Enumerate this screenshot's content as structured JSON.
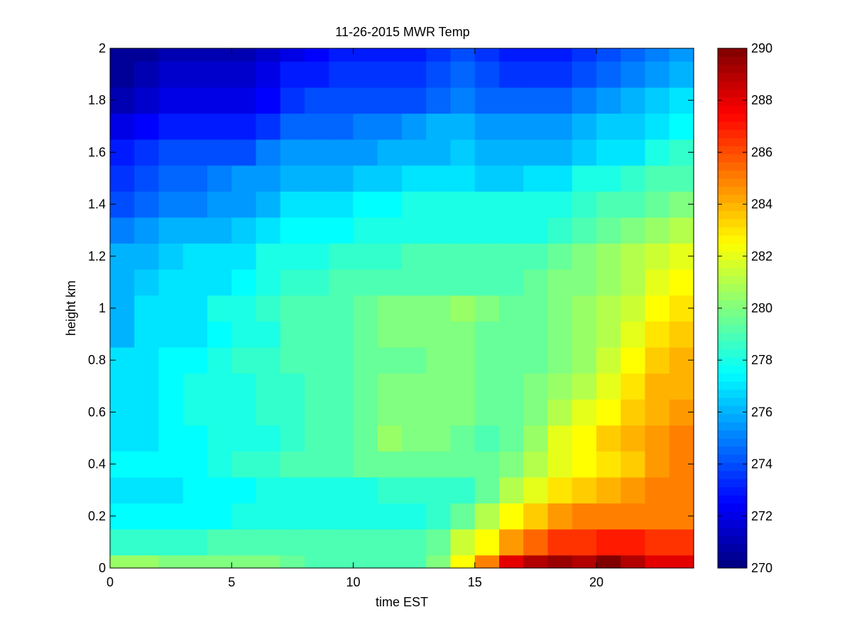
{
  "chart_data": {
    "type": "heatmap",
    "title": "11-26-2015 MWR Temp",
    "xlabel": "time EST",
    "ylabel": "height km",
    "xlim": [
      0,
      24
    ],
    "ylim": [
      0,
      2
    ],
    "x_ticks": [
      0,
      5,
      10,
      15,
      20
    ],
    "y_ticks": [
      0,
      0.2,
      0.4,
      0.6,
      0.8,
      1,
      1.2,
      1.4,
      1.6,
      1.8,
      2
    ],
    "grid": false,
    "colormap": "jet",
    "colorbar": {
      "min": 270,
      "max": 290,
      "ticks": [
        270,
        272,
        274,
        276,
        278,
        280,
        282,
        284,
        286,
        288,
        290
      ]
    },
    "x_centers": [
      0.5,
      1.5,
      2.5,
      3.5,
      4.5,
      5.5,
      6.5,
      7.5,
      8.5,
      9.5,
      10.5,
      11.5,
      12.5,
      13.5,
      14.5,
      15.5,
      16.5,
      17.5,
      18.5,
      19.5,
      20.5,
      21.5,
      22.5,
      23.5
    ],
    "y_edges": [
      0,
      0.05,
      0.15,
      0.25,
      0.35,
      0.45,
      0.55,
      0.65,
      0.75,
      0.85,
      0.95,
      1.05,
      1.15,
      1.25,
      1.35,
      1.45,
      1.55,
      1.65,
      1.75,
      1.85,
      1.95,
      2
    ],
    "z_rows_bottom_to_top": [
      [
        280.5,
        280.5,
        280,
        280,
        280,
        280,
        280,
        279.5,
        279,
        279,
        279,
        279,
        279,
        280,
        282.5,
        285,
        288,
        289,
        289.5,
        289,
        290,
        289,
        288,
        288
      ],
      [
        278.5,
        278.5,
        278.5,
        278.5,
        279,
        279,
        279,
        279,
        279,
        279,
        279,
        279,
        279,
        279.5,
        281.5,
        282.5,
        284.5,
        285.5,
        286.5,
        286.5,
        287,
        287,
        286.5,
        286.5
      ],
      [
        277.5,
        277.5,
        277.5,
        277.5,
        277.5,
        278,
        278,
        278,
        278,
        278,
        278,
        278,
        278,
        278.5,
        279.5,
        281,
        282.5,
        283.5,
        284.5,
        285,
        285,
        285,
        285,
        285
      ],
      [
        277,
        277,
        277,
        277.5,
        277.5,
        277.5,
        278,
        278,
        278,
        278,
        278,
        278.5,
        278.5,
        278.5,
        278.5,
        279.5,
        281,
        282,
        283,
        283.5,
        284,
        284.5,
        285,
        285
      ],
      [
        277.5,
        277.5,
        277.5,
        277.5,
        278,
        278.5,
        278.5,
        279,
        279,
        279,
        279.5,
        279.5,
        279.5,
        279.5,
        279.5,
        279.5,
        280,
        281,
        282,
        282.5,
        283,
        283.5,
        284.5,
        285
      ],
      [
        277,
        277,
        277.5,
        277.5,
        278,
        278,
        278,
        278.5,
        279,
        279,
        279.5,
        280.5,
        280,
        280,
        279.5,
        279,
        279.5,
        280.5,
        282,
        282.5,
        283.5,
        284,
        284.5,
        285
      ],
      [
        277,
        277,
        277.5,
        278,
        278,
        278,
        278.5,
        278.5,
        279,
        279,
        279.5,
        280,
        280,
        280,
        280,
        279.5,
        279.5,
        280,
        281,
        282,
        282.5,
        283.5,
        284,
        284.5
      ],
      [
        277,
        277,
        277.5,
        278,
        278,
        278,
        278.5,
        278.5,
        279,
        279,
        279.5,
        280,
        280,
        280,
        280,
        279.5,
        279.5,
        280,
        280.5,
        281,
        282,
        283,
        284,
        284
      ],
      [
        277,
        277,
        277.5,
        277.5,
        278,
        278.5,
        278.5,
        279,
        279,
        279,
        279.5,
        279.5,
        279.5,
        280,
        280,
        279.5,
        279.5,
        279.5,
        280,
        280.5,
        281.5,
        282.5,
        283.5,
        284
      ],
      [
        276,
        277,
        277,
        277,
        277.5,
        278,
        278,
        279,
        279,
        279,
        279.5,
        280,
        280,
        280,
        280,
        279.5,
        279.5,
        279.5,
        280,
        280.5,
        281,
        282,
        283,
        283.5
      ],
      [
        276,
        277,
        277,
        277,
        278,
        278,
        278.5,
        279,
        279,
        279,
        279.5,
        280,
        280,
        280,
        280.5,
        280,
        279.5,
        279.5,
        280,
        280.5,
        281,
        281.5,
        282.5,
        283
      ],
      [
        276,
        276.5,
        277,
        277,
        277,
        277.5,
        278,
        278.5,
        278.5,
        279,
        279,
        279,
        279,
        279,
        279,
        279,
        279,
        279.5,
        280,
        280,
        280.5,
        281,
        282,
        282.5
      ],
      [
        276,
        276,
        276.5,
        277,
        277,
        277,
        278,
        278,
        278,
        278.5,
        278.5,
        278.5,
        279,
        279,
        279,
        279,
        279,
        279,
        279.5,
        280,
        280.5,
        281,
        281.5,
        282
      ],
      [
        275,
        275.5,
        276,
        276,
        276,
        276.5,
        277,
        277.5,
        277.5,
        277.5,
        278,
        278,
        278,
        278,
        278,
        278,
        278,
        278,
        278.5,
        279,
        279.5,
        280,
        280.5,
        281
      ],
      [
        274,
        274.5,
        275,
        275,
        275.5,
        275.5,
        276,
        277,
        277,
        277,
        277.5,
        277.5,
        278,
        278,
        278,
        278,
        278,
        278,
        278,
        278.5,
        279,
        279,
        279.5,
        280
      ],
      [
        273.5,
        274,
        274.5,
        274.5,
        275,
        275.5,
        275.5,
        276,
        276,
        276,
        276.5,
        276.5,
        277,
        277,
        277,
        276.5,
        276.5,
        277,
        277,
        278,
        278,
        278.5,
        279,
        279
      ],
      [
        273,
        273.5,
        274,
        274,
        274,
        274,
        275,
        275.5,
        275.5,
        275.5,
        275.5,
        276,
        276,
        276,
        276.5,
        276,
        276,
        276,
        276,
        276.5,
        277,
        277,
        278,
        278.5
      ],
      [
        272,
        272.5,
        273,
        273,
        273,
        273,
        273.5,
        274.5,
        274.5,
        274.5,
        275,
        275,
        275.5,
        276,
        276,
        275.5,
        275.5,
        275.5,
        275.5,
        276,
        276.5,
        276.5,
        277,
        277.5
      ],
      [
        271,
        271.5,
        272,
        272,
        272,
        272,
        272.5,
        273.5,
        274,
        274,
        274,
        274,
        274,
        274.5,
        275,
        274.5,
        274.5,
        274.5,
        274.5,
        275,
        275.5,
        276,
        276.5,
        277
      ],
      [
        270.5,
        271,
        271.5,
        271.5,
        271.5,
        271.5,
        272,
        273,
        273,
        273.5,
        273.5,
        273.5,
        273.5,
        274,
        274.5,
        274,
        273.5,
        273.5,
        273.5,
        274,
        274.5,
        275,
        275.5,
        276
      ],
      [
        270.5,
        270.5,
        271,
        271,
        271,
        271,
        271.5,
        272,
        272.5,
        273,
        273,
        273,
        273,
        273.5,
        274,
        273.5,
        273,
        273,
        273,
        273.5,
        274,
        274.5,
        275,
        275.5
      ]
    ]
  }
}
